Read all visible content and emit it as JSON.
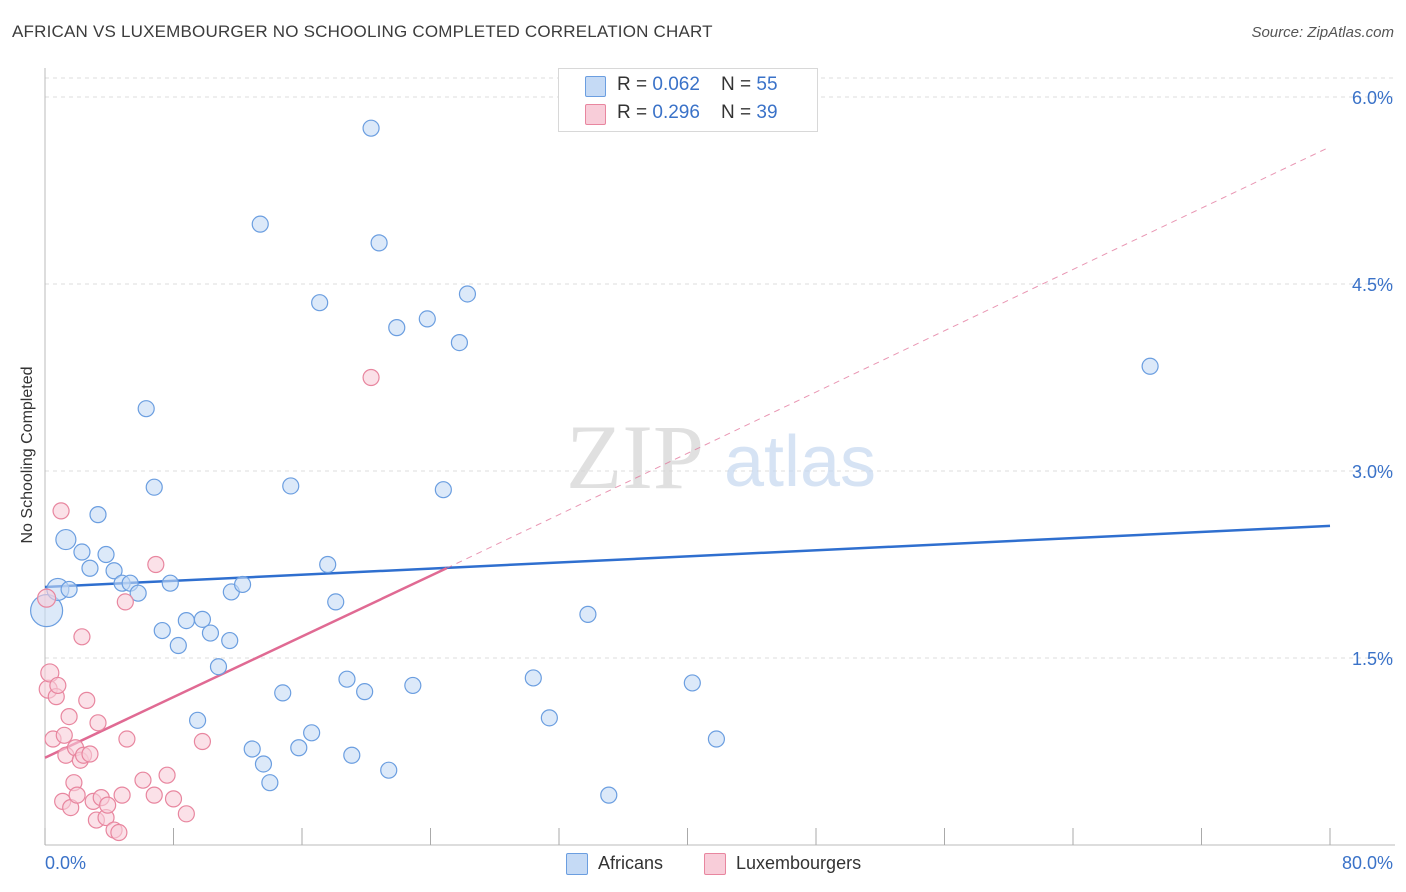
{
  "title": "AFRICAN VS LUXEMBOURGER NO SCHOOLING COMPLETED CORRELATION CHART",
  "source": "Source: ZipAtlas.com",
  "watermark": {
    "zip": "ZIP",
    "atlas": "atlas"
  },
  "legend": {
    "rows": [
      {
        "r_label": "R = ",
        "r_value": "0.062",
        "n_label": "N = ",
        "n_value": "55",
        "color": "#a9c8f0"
      },
      {
        "r_label": "R = ",
        "r_value": "0.296",
        "n_label": "N = ",
        "n_value": "39",
        "color": "#f5b8c8"
      }
    ]
  },
  "bottom_legend": [
    {
      "label": "Africans",
      "color": "#a9c8f0"
    },
    {
      "label": "Luxembourgers",
      "color": "#f5b8c8"
    }
  ],
  "colors": {
    "africans_fill": "#c5daf5",
    "africans_stroke": "#6b9ee0",
    "africans_line": "#2f6fcf",
    "lux_fill": "#f8cdd9",
    "lux_stroke": "#e8869f",
    "lux_line": "#e06a93",
    "grid": "#dddddd",
    "tick_text": "#3a72c8"
  },
  "chart_data": {
    "type": "scatter",
    "title": "AFRICAN VS LUXEMBOURGER NO SCHOOLING COMPLETED CORRELATION CHART",
    "xlabel": "",
    "ylabel": "No Schooling Completed",
    "xlim": [
      0,
      80
    ],
    "ylim": [
      0,
      6.3
    ],
    "x_tick_labels": [
      "0.0%",
      "80.0%"
    ],
    "y_ticks": [
      1.5,
      3.0,
      4.5,
      6.0
    ],
    "y_tick_labels": [
      "1.5%",
      "3.0%",
      "4.5%",
      "6.0%"
    ],
    "grid": "horizontal dashed",
    "legend_position": "top-center",
    "series": [
      {
        "name": "Africans",
        "trend": {
          "x": [
            0,
            80
          ],
          "y": [
            2.07,
            2.56
          ]
        },
        "points": [
          [
            0.1,
            1.88,
            16
          ],
          [
            0.8,
            2.05,
            11
          ],
          [
            1.3,
            2.45,
            10
          ],
          [
            1.5,
            2.05,
            8
          ],
          [
            2.3,
            2.35,
            8
          ],
          [
            2.8,
            2.22,
            8
          ],
          [
            3.3,
            2.65,
            8
          ],
          [
            3.8,
            2.33,
            8
          ],
          [
            4.3,
            2.2,
            8
          ],
          [
            4.8,
            2.1,
            8
          ],
          [
            5.3,
            2.1,
            8
          ],
          [
            5.8,
            2.02,
            8
          ],
          [
            6.3,
            3.5,
            8
          ],
          [
            6.8,
            2.87,
            8
          ],
          [
            7.3,
            1.72,
            8
          ],
          [
            7.8,
            2.1,
            8
          ],
          [
            8.3,
            1.6,
            8
          ],
          [
            8.8,
            1.8,
            8
          ],
          [
            9.5,
            1.0,
            8
          ],
          [
            9.8,
            1.81,
            8
          ],
          [
            10.3,
            1.7,
            8
          ],
          [
            10.8,
            1.43,
            8
          ],
          [
            11.5,
            1.64,
            8
          ],
          [
            11.6,
            2.03,
            8
          ],
          [
            12.3,
            2.09,
            8
          ],
          [
            12.9,
            0.77,
            8
          ],
          [
            13.4,
            4.98,
            8
          ],
          [
            13.6,
            0.65,
            8
          ],
          [
            14.0,
            0.5,
            8
          ],
          [
            14.8,
            1.22,
            8
          ],
          [
            15.3,
            2.88,
            8
          ],
          [
            15.8,
            0.78,
            8
          ],
          [
            16.6,
            0.9,
            8
          ],
          [
            17.1,
            4.35,
            8
          ],
          [
            17.6,
            2.25,
            8
          ],
          [
            18.1,
            1.95,
            8
          ],
          [
            18.8,
            1.33,
            8
          ],
          [
            19.1,
            0.72,
            8
          ],
          [
            19.9,
            1.23,
            8
          ],
          [
            20.3,
            5.75,
            8
          ],
          [
            20.8,
            4.83,
            8
          ],
          [
            21.4,
            0.6,
            8
          ],
          [
            21.9,
            4.15,
            8
          ],
          [
            22.9,
            1.28,
            8
          ],
          [
            23.8,
            4.22,
            8
          ],
          [
            24.8,
            2.85,
            8
          ],
          [
            25.8,
            4.03,
            8
          ],
          [
            26.3,
            4.42,
            8
          ],
          [
            30.4,
            1.34,
            8
          ],
          [
            31.4,
            1.02,
            8
          ],
          [
            33.8,
            1.85,
            8
          ],
          [
            35.1,
            0.4,
            8
          ],
          [
            40.3,
            1.3,
            8
          ],
          [
            41.8,
            0.85,
            8
          ],
          [
            68.8,
            3.84,
            8
          ]
        ]
      },
      {
        "name": "Luxembourgers",
        "trend": {
          "x": [
            0,
            25
          ],
          "y": [
            0.7,
            2.22
          ]
        },
        "trend_extrapolated": {
          "x": [
            25,
            80
          ],
          "y": [
            2.22,
            5.6
          ]
        },
        "points": [
          [
            0.1,
            1.98,
            9
          ],
          [
            0.2,
            1.25,
            9
          ],
          [
            0.3,
            1.38,
            9
          ],
          [
            0.5,
            0.85,
            8
          ],
          [
            0.7,
            1.19,
            8
          ],
          [
            0.8,
            1.28,
            8
          ],
          [
            1.0,
            2.68,
            8
          ],
          [
            1.1,
            0.35,
            8
          ],
          [
            1.2,
            0.88,
            8
          ],
          [
            1.3,
            0.72,
            8
          ],
          [
            1.5,
            1.03,
            8
          ],
          [
            1.6,
            0.3,
            8
          ],
          [
            1.8,
            0.5,
            8
          ],
          [
            1.9,
            0.78,
            8
          ],
          [
            2.0,
            0.4,
            8
          ],
          [
            2.2,
            0.68,
            8
          ],
          [
            2.3,
            1.67,
            8
          ],
          [
            2.4,
            0.72,
            8
          ],
          [
            2.6,
            1.16,
            8
          ],
          [
            2.8,
            0.73,
            8
          ],
          [
            3.0,
            0.35,
            8
          ],
          [
            3.2,
            0.2,
            8
          ],
          [
            3.3,
            0.98,
            8
          ],
          [
            3.5,
            0.38,
            8
          ],
          [
            3.8,
            0.22,
            8
          ],
          [
            3.9,
            0.32,
            8
          ],
          [
            4.3,
            0.12,
            8
          ],
          [
            4.6,
            0.1,
            8
          ],
          [
            4.8,
            0.4,
            8
          ],
          [
            5.0,
            1.95,
            8
          ],
          [
            5.1,
            0.85,
            8
          ],
          [
            6.1,
            0.52,
            8
          ],
          [
            6.8,
            0.4,
            8
          ],
          [
            6.9,
            2.25,
            8
          ],
          [
            7.6,
            0.56,
            8
          ],
          [
            8.0,
            0.37,
            8
          ],
          [
            8.8,
            0.25,
            8
          ],
          [
            9.8,
            0.83,
            8
          ],
          [
            20.3,
            3.75,
            8
          ]
        ]
      }
    ]
  }
}
